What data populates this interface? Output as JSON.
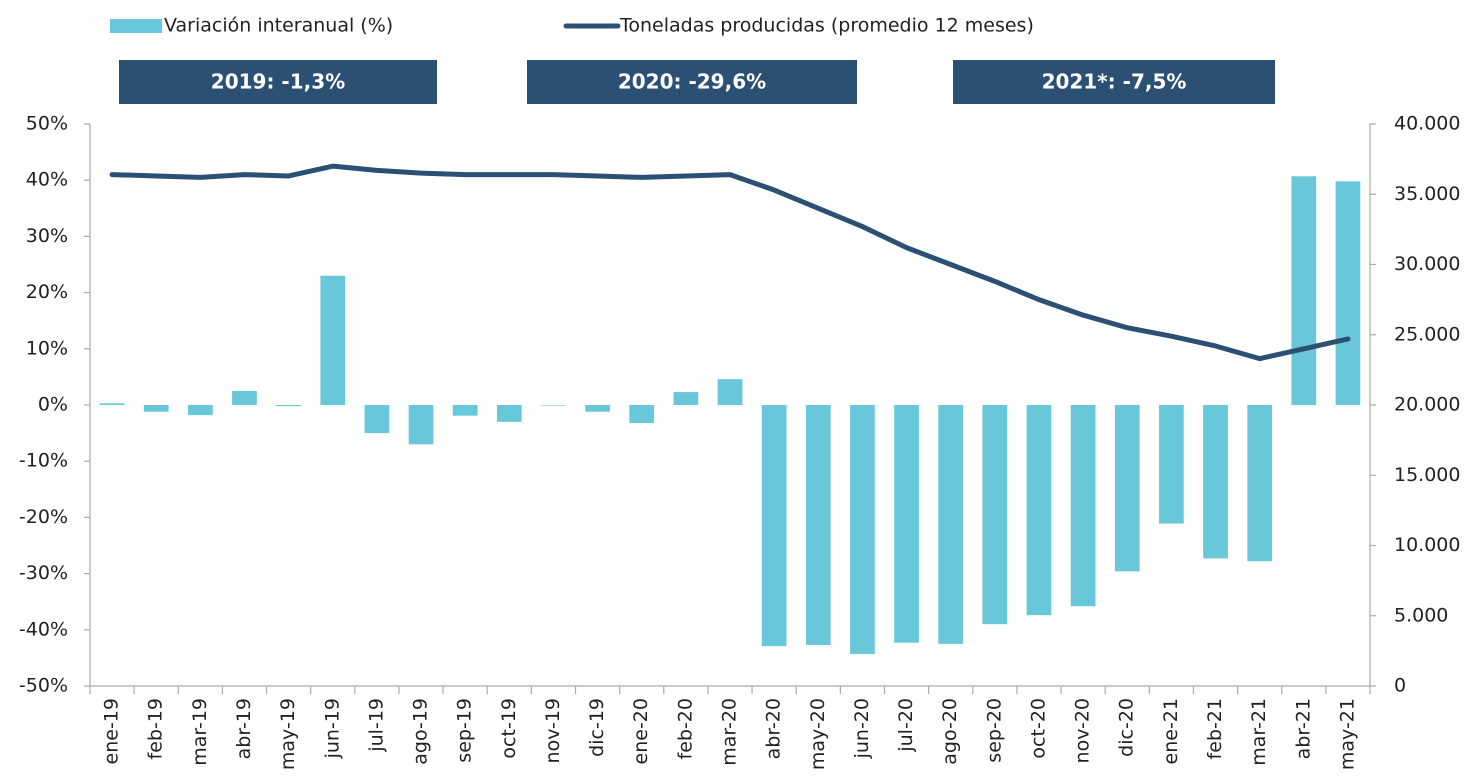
{
  "chart_data": {
    "type": "bar_line",
    "categories": [
      "ene-19",
      "feb-19",
      "mar-19",
      "abr-19",
      "may-19",
      "jun-19",
      "jul-19",
      "ago-19",
      "sep-19",
      "oct-19",
      "nov-19",
      "dic-19",
      "ene-20",
      "feb-20",
      "mar-20",
      "abr-20",
      "may-20",
      "jun-20",
      "jul-20",
      "ago-20",
      "sep-20",
      "oct-20",
      "nov-20",
      "dic-20",
      "ene-21",
      "feb-21",
      "mar-21",
      "abr-21",
      "may-21"
    ],
    "series": [
      {
        "name": "Variación interanual (%)",
        "type": "bar",
        "color": "#68c8d9",
        "values": [
          0.3,
          -1.2,
          -1.8,
          2.5,
          -0.2,
          23.0,
          -5.0,
          -7.0,
          -1.9,
          -3.0,
          -0.1,
          -1.2,
          -3.2,
          2.3,
          4.6,
          -42.9,
          -42.7,
          -44.3,
          -42.3,
          -42.5,
          -39.0,
          -37.4,
          -35.8,
          -29.6,
          -21.1,
          -27.3,
          -27.8,
          40.7,
          39.8
        ]
      },
      {
        "name": "Toneladas producidas (promedio 12 meses)",
        "type": "line",
        "axis": "y2",
        "color": "#2c5073",
        "values": [
          36400,
          36300,
          36200,
          36400,
          36300,
          37000,
          36700,
          36500,
          36400,
          36400,
          36400,
          36300,
          36200,
          36300,
          36400,
          35300,
          34000,
          32700,
          31200,
          30000,
          28800,
          27500,
          26400,
          25500,
          24900,
          24200,
          23300,
          24000,
          24700
        ]
      }
    ],
    "annotations": [
      "2019:  -1,3%",
      "2020:  -29,6%",
      "2021*:  -7,5%"
    ],
    "annotation_color": "#2c5073",
    "ylim": [
      -50,
      50
    ],
    "yticks": [
      {
        "value": -50,
        "label": "-50%"
      },
      {
        "value": -40,
        "label": "-40%"
      },
      {
        "value": -30,
        "label": "-30%"
      },
      {
        "value": -20,
        "label": "-20%"
      },
      {
        "value": -10,
        "label": "-10%"
      },
      {
        "value": 0,
        "label": "0%"
      },
      {
        "value": 10,
        "label": "10%"
      },
      {
        "value": 20,
        "label": "20%"
      },
      {
        "value": 30,
        "label": "30%"
      },
      {
        "value": 40,
        "label": "40%"
      },
      {
        "value": 50,
        "label": "50%"
      }
    ],
    "y2lim": [
      0,
      40000
    ],
    "y2ticks": [
      0,
      {
        "value": 5000,
        "label": "5.000"
      },
      {
        "value": 10000,
        "label": "10.000"
      },
      {
        "value": 15000,
        "label": "15.000"
      },
      {
        "value": 20000,
        "label": "20.000"
      },
      {
        "value": 25000,
        "label": "25.000"
      },
      {
        "value": 30000,
        "label": "30.000"
      },
      {
        "value": 35000,
        "label": "35.000"
      },
      {
        "value": 40000,
        "label": "40.000"
      }
    ],
    "grid": false,
    "legend": "top"
  }
}
